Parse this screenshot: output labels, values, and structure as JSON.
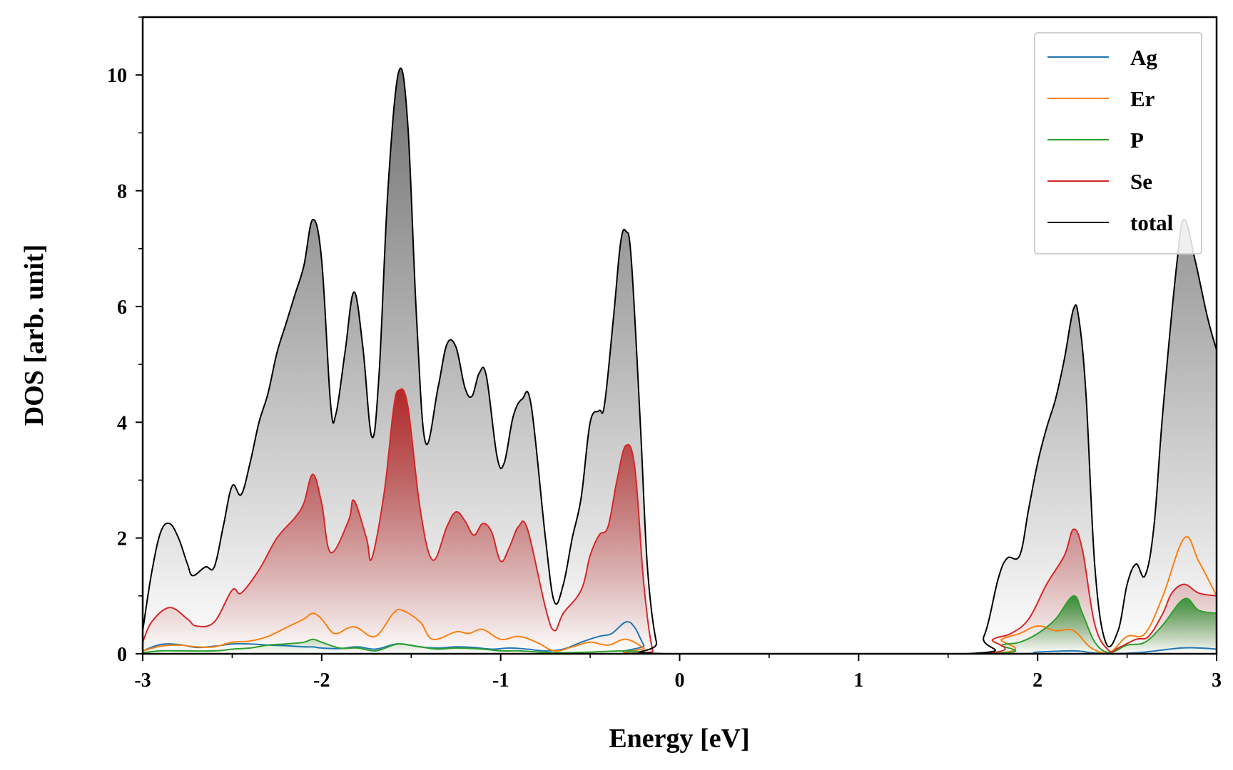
{
  "chart_data": {
    "type": "area",
    "xlabel": "Energy [eV]",
    "ylabel": "DOS [arb. unit]",
    "xlim": [
      -3,
      3
    ],
    "ylim": [
      0,
      11
    ],
    "xticks": [
      -3,
      -2,
      -1,
      0,
      1,
      2,
      3
    ],
    "xtick_labels": [
      "-3",
      "-2",
      "-1",
      "0",
      "1",
      "2",
      "3"
    ],
    "yticks": [
      0,
      2,
      4,
      6,
      8,
      10
    ],
    "ytick_labels": [
      "0",
      "2",
      "4",
      "6",
      "8",
      "10"
    ],
    "x_minor_step": 0.5,
    "y_minor_step": 1,
    "grid": false,
    "legend_position": "top-right",
    "series": [
      {
        "name": "Ag",
        "color": "#1f77b4",
        "fill": false,
        "points": [
          [
            -3,
            0.05
          ],
          [
            -2.9,
            0.16
          ],
          [
            -2.8,
            0.16
          ],
          [
            -2.7,
            0.11
          ],
          [
            -2.6,
            0.13
          ],
          [
            -2.5,
            0.17
          ],
          [
            -2.4,
            0.17
          ],
          [
            -2.3,
            0.15
          ],
          [
            -2.2,
            0.14
          ],
          [
            -2.1,
            0.12
          ],
          [
            -2.05,
            0.12
          ],
          [
            -2.0,
            0.1
          ],
          [
            -1.9,
            0.09
          ],
          [
            -1.8,
            0.12
          ],
          [
            -1.7,
            0.08
          ],
          [
            -1.6,
            0.16
          ],
          [
            -1.55,
            0.17
          ],
          [
            -1.45,
            0.12
          ],
          [
            -1.35,
            0.1
          ],
          [
            -1.25,
            0.12
          ],
          [
            -1.15,
            0.11
          ],
          [
            -1.05,
            0.08
          ],
          [
            -0.95,
            0.1
          ],
          [
            -0.85,
            0.08
          ],
          [
            -0.75,
            0.05
          ],
          [
            -0.65,
            0.08
          ],
          [
            -0.55,
            0.2
          ],
          [
            -0.45,
            0.3
          ],
          [
            -0.38,
            0.35
          ],
          [
            -0.3,
            0.55
          ],
          [
            -0.25,
            0.45
          ],
          [
            -0.2,
            0.15
          ],
          [
            -0.15,
            0.0
          ],
          [
            1.75,
            0.0
          ],
          [
            2.0,
            0.03
          ],
          [
            2.2,
            0.05
          ],
          [
            2.3,
            0.02
          ],
          [
            2.4,
            0.0
          ],
          [
            2.5,
            0.01
          ],
          [
            2.6,
            0.03
          ],
          [
            2.8,
            0.1
          ],
          [
            2.9,
            0.1
          ],
          [
            3.0,
            0.08
          ]
        ]
      },
      {
        "name": "Er",
        "color": "#ff7f0e",
        "fill": false,
        "points": [
          [
            -3,
            0.05
          ],
          [
            -2.9,
            0.13
          ],
          [
            -2.8,
            0.15
          ],
          [
            -2.7,
            0.12
          ],
          [
            -2.6,
            0.12
          ],
          [
            -2.5,
            0.2
          ],
          [
            -2.4,
            0.22
          ],
          [
            -2.3,
            0.3
          ],
          [
            -2.2,
            0.45
          ],
          [
            -2.1,
            0.6
          ],
          [
            -2.05,
            0.7
          ],
          [
            -2.0,
            0.6
          ],
          [
            -1.93,
            0.35
          ],
          [
            -1.85,
            0.45
          ],
          [
            -1.8,
            0.45
          ],
          [
            -1.7,
            0.3
          ],
          [
            -1.6,
            0.7
          ],
          [
            -1.55,
            0.75
          ],
          [
            -1.45,
            0.55
          ],
          [
            -1.38,
            0.25
          ],
          [
            -1.25,
            0.38
          ],
          [
            -1.18,
            0.35
          ],
          [
            -1.1,
            0.42
          ],
          [
            -1.0,
            0.25
          ],
          [
            -0.9,
            0.3
          ],
          [
            -0.8,
            0.2
          ],
          [
            -0.7,
            0.05
          ],
          [
            -0.6,
            0.12
          ],
          [
            -0.5,
            0.2
          ],
          [
            -0.4,
            0.15
          ],
          [
            -0.3,
            0.25
          ],
          [
            -0.2,
            0.1
          ],
          [
            -0.15,
            0.0
          ],
          [
            1.7,
            0.0
          ],
          [
            1.8,
            0.25
          ],
          [
            1.9,
            0.35
          ],
          [
            2.0,
            0.48
          ],
          [
            2.1,
            0.4
          ],
          [
            2.2,
            0.4
          ],
          [
            2.3,
            0.1
          ],
          [
            2.4,
            0.02
          ],
          [
            2.5,
            0.3
          ],
          [
            2.6,
            0.35
          ],
          [
            2.7,
            1.0
          ],
          [
            2.82,
            2.0
          ],
          [
            2.9,
            1.6
          ],
          [
            3.0,
            1.0
          ]
        ]
      },
      {
        "name": "P",
        "color": "#2ca02c",
        "fill": true,
        "fill_color": "#2e8b2e",
        "points": [
          [
            -3,
            0.02
          ],
          [
            -2.9,
            0.05
          ],
          [
            -2.8,
            0.05
          ],
          [
            -2.6,
            0.05
          ],
          [
            -2.5,
            0.08
          ],
          [
            -2.4,
            0.1
          ],
          [
            -2.3,
            0.15
          ],
          [
            -2.2,
            0.17
          ],
          [
            -2.1,
            0.2
          ],
          [
            -2.05,
            0.25
          ],
          [
            -2.0,
            0.2
          ],
          [
            -1.9,
            0.1
          ],
          [
            -1.8,
            0.1
          ],
          [
            -1.7,
            0.05
          ],
          [
            -1.6,
            0.15
          ],
          [
            -1.55,
            0.17
          ],
          [
            -1.45,
            0.12
          ],
          [
            -1.35,
            0.08
          ],
          [
            -1.25,
            0.1
          ],
          [
            -1.1,
            0.08
          ],
          [
            -1.0,
            0.05
          ],
          [
            -0.9,
            0.05
          ],
          [
            -0.7,
            0.02
          ],
          [
            -0.5,
            0.03
          ],
          [
            -0.3,
            0.05
          ],
          [
            -0.2,
            0.02
          ],
          [
            -0.15,
            0.0
          ],
          [
            1.7,
            0.0
          ],
          [
            1.8,
            0.15
          ],
          [
            1.9,
            0.2
          ],
          [
            2.0,
            0.35
          ],
          [
            2.1,
            0.6
          ],
          [
            2.2,
            1.0
          ],
          [
            2.25,
            0.7
          ],
          [
            2.32,
            0.2
          ],
          [
            2.4,
            0.02
          ],
          [
            2.5,
            0.15
          ],
          [
            2.6,
            0.2
          ],
          [
            2.7,
            0.5
          ],
          [
            2.82,
            0.95
          ],
          [
            2.9,
            0.75
          ],
          [
            3.0,
            0.7
          ]
        ]
      },
      {
        "name": "Se",
        "color": "#d62728",
        "fill": true,
        "fill_color": "#b22222",
        "points": [
          [
            -3,
            0.2
          ],
          [
            -2.95,
            0.55
          ],
          [
            -2.85,
            0.8
          ],
          [
            -2.75,
            0.6
          ],
          [
            -2.7,
            0.48
          ],
          [
            -2.6,
            0.55
          ],
          [
            -2.5,
            1.1
          ],
          [
            -2.45,
            1.05
          ],
          [
            -2.35,
            1.45
          ],
          [
            -2.25,
            2.0
          ],
          [
            -2.15,
            2.35
          ],
          [
            -2.1,
            2.6
          ],
          [
            -2.05,
            3.1
          ],
          [
            -2.0,
            2.6
          ],
          [
            -1.95,
            1.75
          ],
          [
            -1.85,
            2.3
          ],
          [
            -1.82,
            2.65
          ],
          [
            -1.75,
            2.0
          ],
          [
            -1.72,
            1.65
          ],
          [
            -1.65,
            2.8
          ],
          [
            -1.6,
            4.2
          ],
          [
            -1.57,
            4.55
          ],
          [
            -1.52,
            4.3
          ],
          [
            -1.45,
            2.5
          ],
          [
            -1.38,
            1.62
          ],
          [
            -1.3,
            2.2
          ],
          [
            -1.25,
            2.45
          ],
          [
            -1.2,
            2.3
          ],
          [
            -1.15,
            2.05
          ],
          [
            -1.1,
            2.25
          ],
          [
            -1.05,
            2.1
          ],
          [
            -1.0,
            1.6
          ],
          [
            -0.95,
            1.85
          ],
          [
            -0.9,
            2.2
          ],
          [
            -0.85,
            2.15
          ],
          [
            -0.75,
            0.8
          ],
          [
            -0.7,
            0.4
          ],
          [
            -0.65,
            0.7
          ],
          [
            -0.55,
            1.1
          ],
          [
            -0.5,
            1.7
          ],
          [
            -0.45,
            2.05
          ],
          [
            -0.4,
            2.2
          ],
          [
            -0.35,
            3.0
          ],
          [
            -0.3,
            3.6
          ],
          [
            -0.25,
            3.2
          ],
          [
            -0.2,
            1.2
          ],
          [
            -0.15,
            0.05
          ],
          [
            -0.1,
            0.0
          ],
          [
            1.65,
            0.0
          ],
          [
            1.75,
            0.25
          ],
          [
            1.85,
            0.35
          ],
          [
            1.95,
            0.6
          ],
          [
            2.05,
            1.2
          ],
          [
            2.15,
            1.7
          ],
          [
            2.2,
            2.15
          ],
          [
            2.25,
            1.8
          ],
          [
            2.32,
            0.5
          ],
          [
            2.4,
            0.05
          ],
          [
            2.45,
            0.1
          ],
          [
            2.55,
            0.25
          ],
          [
            2.62,
            0.3
          ],
          [
            2.7,
            0.7
          ],
          [
            2.75,
            1.05
          ],
          [
            2.82,
            1.2
          ],
          [
            2.9,
            1.05
          ],
          [
            3.0,
            1.0
          ]
        ]
      },
      {
        "name": "total",
        "color": "#000000",
        "fill": true,
        "fill_color": "#6a6a6a",
        "points": [
          [
            -3,
            0.4
          ],
          [
            -2.95,
            1.4
          ],
          [
            -2.9,
            2.1
          ],
          [
            -2.85,
            2.25
          ],
          [
            -2.8,
            2.0
          ],
          [
            -2.75,
            1.55
          ],
          [
            -2.72,
            1.35
          ],
          [
            -2.65,
            1.5
          ],
          [
            -2.6,
            1.5
          ],
          [
            -2.55,
            2.2
          ],
          [
            -2.5,
            2.9
          ],
          [
            -2.45,
            2.75
          ],
          [
            -2.4,
            3.3
          ],
          [
            -2.35,
            4.0
          ],
          [
            -2.3,
            4.5
          ],
          [
            -2.25,
            5.2
          ],
          [
            -2.2,
            5.7
          ],
          [
            -2.15,
            6.2
          ],
          [
            -2.1,
            6.7
          ],
          [
            -2.05,
            7.5
          ],
          [
            -2.0,
            6.8
          ],
          [
            -1.95,
            4.3
          ],
          [
            -1.92,
            4.15
          ],
          [
            -1.87,
            5.2
          ],
          [
            -1.82,
            6.25
          ],
          [
            -1.77,
            5.3
          ],
          [
            -1.72,
            3.75
          ],
          [
            -1.68,
            4.8
          ],
          [
            -1.63,
            8.0
          ],
          [
            -1.57,
            10.05
          ],
          [
            -1.52,
            9.2
          ],
          [
            -1.47,
            5.8
          ],
          [
            -1.42,
            3.65
          ],
          [
            -1.35,
            4.6
          ],
          [
            -1.3,
            5.35
          ],
          [
            -1.25,
            5.3
          ],
          [
            -1.2,
            4.6
          ],
          [
            -1.16,
            4.45
          ],
          [
            -1.12,
            4.85
          ],
          [
            -1.08,
            4.8
          ],
          [
            -1.02,
            3.4
          ],
          [
            -0.98,
            3.3
          ],
          [
            -0.93,
            4.1
          ],
          [
            -0.88,
            4.4
          ],
          [
            -0.83,
            4.3
          ],
          [
            -0.75,
            2.0
          ],
          [
            -0.7,
            0.9
          ],
          [
            -0.65,
            1.2
          ],
          [
            -0.6,
            2.0
          ],
          [
            -0.55,
            2.7
          ],
          [
            -0.5,
            4.0
          ],
          [
            -0.45,
            4.2
          ],
          [
            -0.42,
            4.3
          ],
          [
            -0.37,
            5.8
          ],
          [
            -0.33,
            7.1
          ],
          [
            -0.3,
            7.3
          ],
          [
            -0.27,
            6.8
          ],
          [
            -0.22,
            4.0
          ],
          [
            -0.18,
            1.5
          ],
          [
            -0.13,
            0.2
          ],
          [
            -0.08,
            0.0
          ],
          [
            1.6,
            0.0
          ],
          [
            1.7,
            0.3
          ],
          [
            1.78,
            1.3
          ],
          [
            1.83,
            1.65
          ],
          [
            1.9,
            1.7
          ],
          [
            1.95,
            2.5
          ],
          [
            2.0,
            3.3
          ],
          [
            2.05,
            3.9
          ],
          [
            2.1,
            4.4
          ],
          [
            2.15,
            5.1
          ],
          [
            2.2,
            5.95
          ],
          [
            2.23,
            5.8
          ],
          [
            2.27,
            4.5
          ],
          [
            2.32,
            1.5
          ],
          [
            2.38,
            0.2
          ],
          [
            2.45,
            0.4
          ],
          [
            2.5,
            1.2
          ],
          [
            2.55,
            1.55
          ],
          [
            2.6,
            1.35
          ],
          [
            2.65,
            2.2
          ],
          [
            2.7,
            4.2
          ],
          [
            2.78,
            6.8
          ],
          [
            2.82,
            7.5
          ],
          [
            2.88,
            6.8
          ],
          [
            2.95,
            5.8
          ],
          [
            3.0,
            5.25
          ]
        ]
      }
    ]
  }
}
